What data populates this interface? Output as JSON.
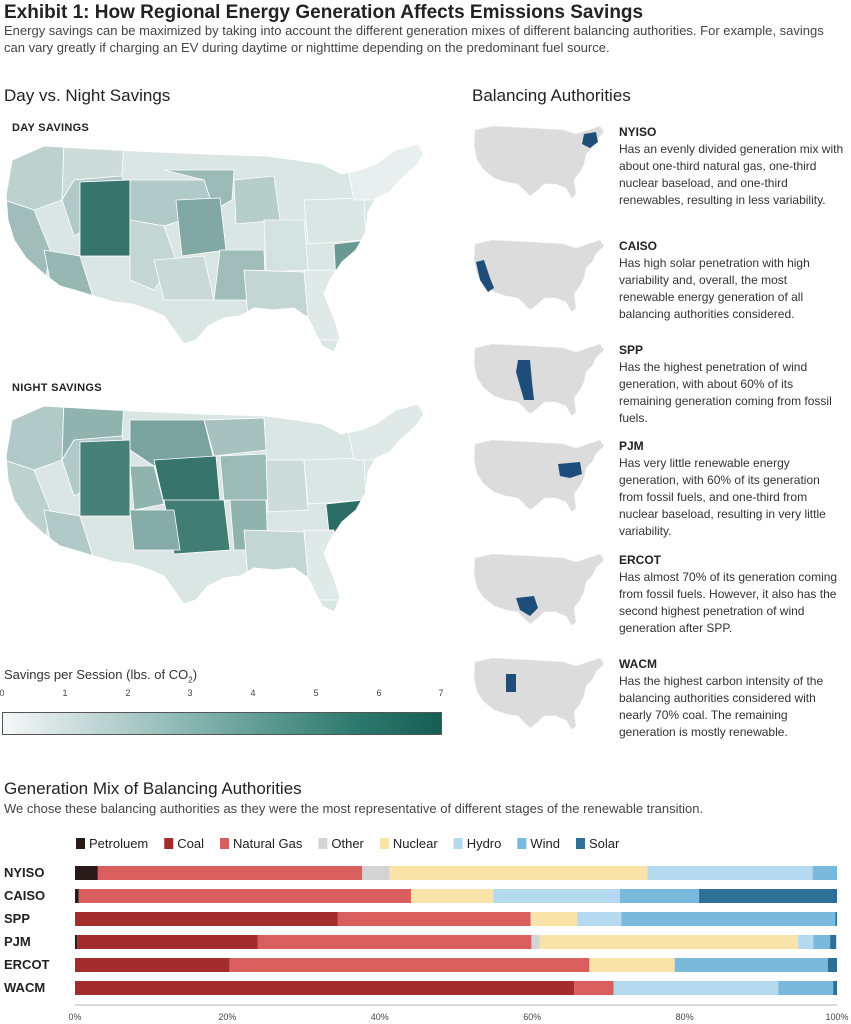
{
  "header": {
    "title": "Exhibit 1: How Regional Energy Generation Affects Emissions Savings",
    "subtitle": "Energy savings can be maximized by taking into account the different generation mixes of different balancing authorities. For example, savings can vary greatly if charging an EV during daytime or nighttime depending on the predominant fuel source."
  },
  "maps": {
    "section_title": "Day vs. Night Savings",
    "day_label": "DAY SAVINGS",
    "night_label": "NIGHT SAVINGS",
    "legend": {
      "title": "Savings per Session (lbs. of CO",
      "title_sub": "2",
      "title_end": ")",
      "ticks": [
        "0",
        "1",
        "2",
        "3",
        "4",
        "5",
        "6",
        "7"
      ],
      "min": 0,
      "max": 7
    }
  },
  "authorities": {
    "section_title": "Balancing Authorities",
    "items": [
      {
        "name": "NYISO",
        "description": "Has an evenly divided generation mix with about one-third natural gas, one-third nuclear baseload, and one-third renewables, resulting in less variability."
      },
      {
        "name": "CAISO",
        "description": "Has high solar penetration with high variability and, overall, the most renewable energy generation of all balancing authorities considered."
      },
      {
        "name": "SPP",
        "description": "Has the highest penetration of wind generation, with about 60% of its remaining generation coming from fossil fuels."
      },
      {
        "name": "PJM",
        "description": "Has very little renewable energy generation, with 60% of its generation from fossil fuels, and one-third from nuclear baseload, resulting in very little variability."
      },
      {
        "name": "ERCOT",
        "description": "Has almost 70% of its generation coming from fossil fuels. However, it also has the second highest penetration of wind generation after SPP."
      },
      {
        "name": "WACM",
        "description": "Has the highest carbon intensity of the balancing authorities considered with nearly 70% coal. The remaining generation is mostly renewable."
      }
    ]
  },
  "chart_data": {
    "type": "bar",
    "orientation": "horizontal",
    "stacked": true,
    "title": "Generation Mix of Balancing Authorities",
    "subtitle": "We chose these balancing authorities as they were the most representative of different stages of the renewable transition.",
    "categories": [
      "NYISO",
      "CAISO",
      "SPP",
      "PJM",
      "ERCOT",
      "WACM"
    ],
    "series": [
      {
        "name": "Petroluem",
        "color": "#2b1a1a",
        "values": [
          3,
          0.5,
          0,
          0.3,
          0,
          0
        ]
      },
      {
        "name": "Coal",
        "color": "#a32d2d",
        "values": [
          0,
          0,
          34.5,
          23.7,
          20.3,
          65.5
        ]
      },
      {
        "name": "Natural Gas",
        "color": "#d95f5f",
        "values": [
          34.7,
          43.6,
          25.3,
          35.9,
          47.2,
          5.2
        ]
      },
      {
        "name": "Other",
        "color": "#d4d4d4",
        "values": [
          3.6,
          0,
          0,
          1.1,
          0,
          0
        ]
      },
      {
        "name": "Nuclear",
        "color": "#fae3a8",
        "values": [
          33.8,
          10.8,
          6.1,
          33.9,
          11.2,
          0
        ]
      },
      {
        "name": "Hydro",
        "color": "#b5daf0",
        "values": [
          21.7,
          16.6,
          5.8,
          2,
          0,
          21.6
        ]
      },
      {
        "name": "Wind",
        "color": "#7ab8dc",
        "values": [
          3.2,
          10.4,
          28.1,
          2.2,
          20.1,
          7.2
        ]
      },
      {
        "name": "Solar",
        "color": "#2e6f96",
        "values": [
          0,
          18.1,
          0.2,
          0.8,
          1.2,
          0.5
        ]
      }
    ],
    "xlim": [
      0,
      100
    ],
    "x_ticks": [
      "0%",
      "20%",
      "40%",
      "60%",
      "80%",
      "100%"
    ],
    "legend_position": "top"
  },
  "colors": {
    "map_low": "#f5f8f8",
    "map_high": "#155e53",
    "highlight": "#1e4d7b",
    "base_map": "#dcdcdc"
  }
}
